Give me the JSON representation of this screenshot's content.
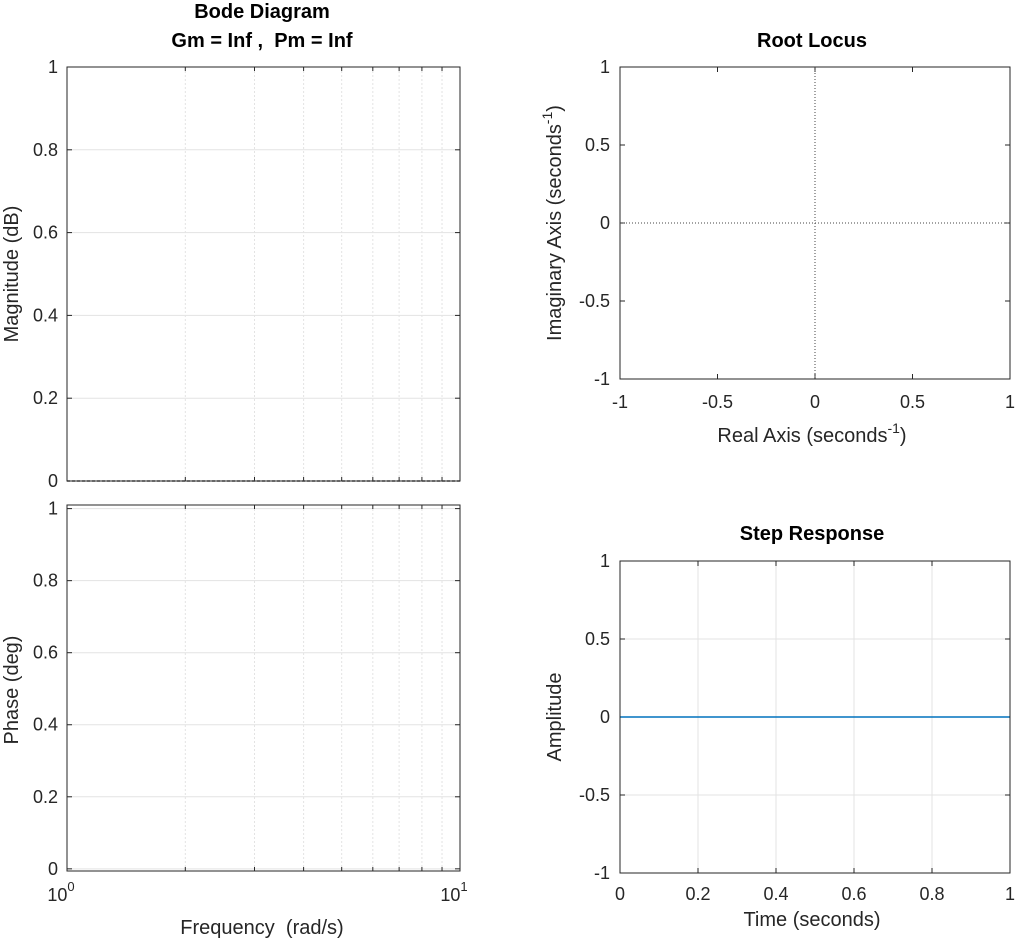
{
  "figure": {
    "bode_title": "Bode Diagram",
    "bode_subtitle": "Gm = Inf ,  Pm = Inf",
    "rlocus_title": "Root Locus",
    "step_title": "Step Response"
  },
  "chart_data": [
    {
      "id": "bode-magnitude",
      "type": "line",
      "title": "Bode Diagram",
      "subtitle": "Gm = Inf ,  Pm = Inf",
      "xlabel": "",
      "ylabel": "Magnitude (dB)",
      "xscale": "log",
      "xlim": [
        1,
        10
      ],
      "ylim": [
        0,
        1
      ],
      "yticks": [
        "0",
        "0.2",
        "0.4",
        "0.6",
        "0.8",
        "1"
      ],
      "grid": true,
      "series": [
        {
          "x": [
            1,
            10
          ],
          "y": [
            0,
            0
          ]
        }
      ]
    },
    {
      "id": "bode-phase",
      "type": "line",
      "title": "",
      "xlabel": "Frequency  (rad/s)",
      "ylabel": "Phase (deg)",
      "xscale": "log",
      "xlim": [
        1,
        10
      ],
      "ylim": [
        0,
        1
      ],
      "xticks": [
        {
          "base": "10",
          "exp": "0"
        },
        {
          "base": "10",
          "exp": "1"
        }
      ],
      "yticks": [
        "0",
        "0.2",
        "0.4",
        "0.6",
        "0.8",
        "1"
      ],
      "grid": true,
      "series": []
    },
    {
      "id": "root-locus",
      "type": "scatter",
      "title": "Root Locus",
      "xlabel": {
        "text": "Real Axis (seconds",
        "sup": "-1",
        "close": ")"
      },
      "ylabel": {
        "text": "Imaginary Axis (seconds",
        "sup": "-1",
        "close": ")"
      },
      "xlim": [
        -1,
        1
      ],
      "ylim": [
        -1,
        1
      ],
      "xticks": [
        "-1",
        "-0.5",
        "0",
        "0.5",
        "1"
      ],
      "yticks": [
        "-1",
        "-0.5",
        "0",
        "0.5",
        "1"
      ],
      "grid": false,
      "reference_lines": [
        "x=0",
        "y=0"
      ],
      "series": []
    },
    {
      "id": "step-response",
      "type": "line",
      "title": "Step Response",
      "xlabel": "Time (seconds)",
      "ylabel": "Amplitude",
      "xlim": [
        0,
        1
      ],
      "ylim": [
        -1,
        1
      ],
      "xticks": [
        "0",
        "0.2",
        "0.4",
        "0.6",
        "0.8",
        "1"
      ],
      "yticks": [
        "-1",
        "-0.5",
        "0",
        "0.5",
        "1"
      ],
      "grid": true,
      "series": [
        {
          "x": [
            0,
            1
          ],
          "y": [
            0,
            0
          ],
          "color": "#0072BD"
        }
      ]
    }
  ]
}
